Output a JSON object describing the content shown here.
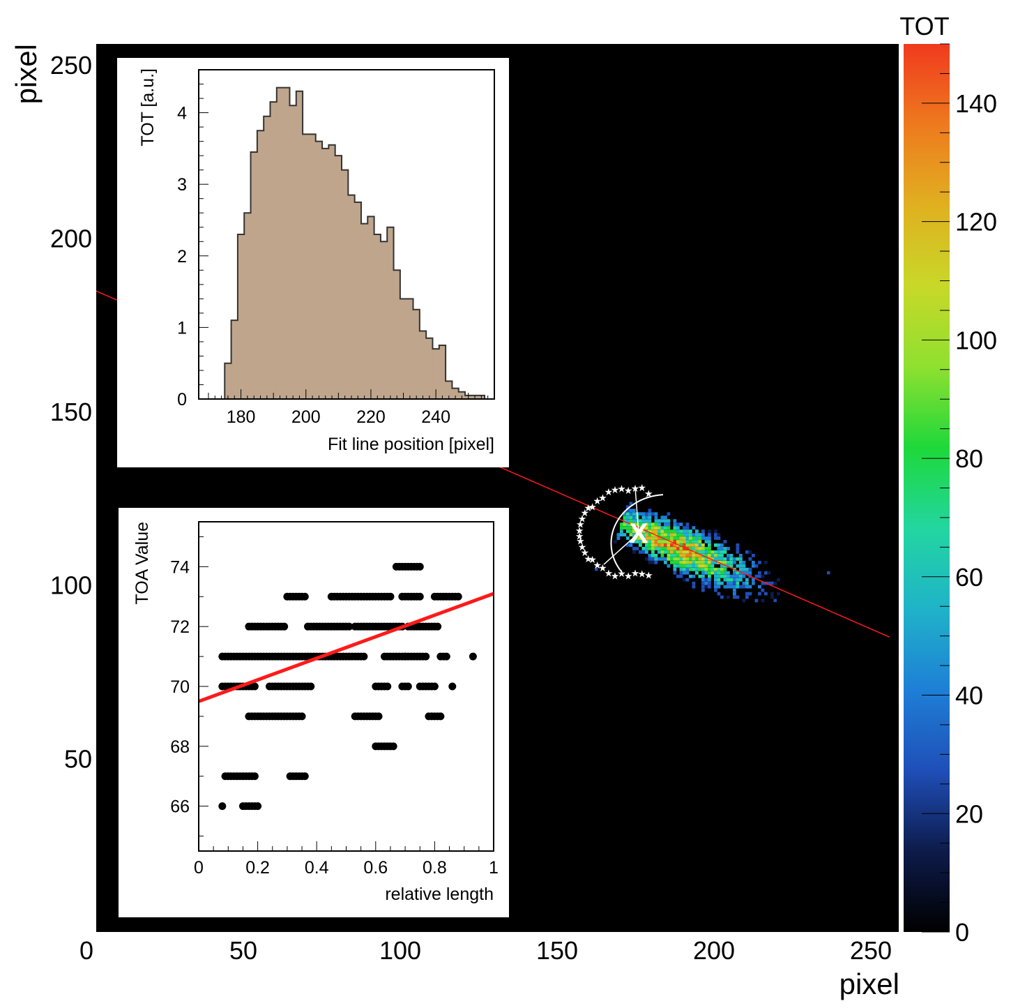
{
  "colorbar": {
    "title": "TOT",
    "range": [
      0,
      150
    ],
    "ticks": [
      0,
      20,
      40,
      60,
      80,
      100,
      120,
      140
    ],
    "colors": [
      "#000000",
      "#0d1b4a",
      "#1f4fb8",
      "#1e7fd6",
      "#1fb3c9",
      "#22d6a0",
      "#1ed83a",
      "#8fe030",
      "#c8d828",
      "#e0b020",
      "#ee7a1e",
      "#f03a1e"
    ]
  },
  "chart_data": [
    {
      "type": "heatmap",
      "title": "",
      "xlabel": "pixel",
      "ylabel": "pixel",
      "xlim": [
        0,
        256
      ],
      "ylim": [
        0,
        256
      ],
      "x_ticks": [
        0,
        50,
        100,
        150,
        200,
        250
      ],
      "y_ticks": [
        50,
        100,
        150,
        200,
        250
      ],
      "background": "#000000",
      "cluster": {
        "center": [
          175.5,
          115.5
        ],
        "axis_direction_deg": -22,
        "extent_x": [
          162,
          240
        ],
        "extent_y": [
          84,
          132
        ],
        "peak_tot": 140
      },
      "fit_line": {
        "color": "#ff1a1a",
        "points": [
          [
            0,
            186
          ],
          [
            256,
            85
          ]
        ]
      },
      "vertex_marker": {
        "symbol": "X",
        "x": 176,
        "y": 115,
        "color": "#ffffff"
      }
    },
    {
      "type": "bar",
      "subtype": "histogram",
      "title": "",
      "xlabel": "Fit line position [pixel]",
      "ylabel": "TOT [a.u.]",
      "xlim": [
        167,
        258
      ],
      "ylim": [
        0,
        4.6
      ],
      "x_ticks": [
        180,
        200,
        220,
        240
      ],
      "y_ticks": [
        0,
        1,
        2,
        3,
        4
      ],
      "bin_width": 2,
      "bin_start": 175,
      "values": [
        0.5,
        1.1,
        2.3,
        2.6,
        3.45,
        3.75,
        3.95,
        4.15,
        4.35,
        4.35,
        4.1,
        4.3,
        3.7,
        3.7,
        3.6,
        3.5,
        3.55,
        3.4,
        3.2,
        2.85,
        2.75,
        2.45,
        2.55,
        2.3,
        2.2,
        2.4,
        1.8,
        1.4,
        1.4,
        1.25,
        0.95,
        0.85,
        0.7,
        0.75,
        0.25,
        0.15,
        0.1,
        0.05,
        0.05,
        0.05
      ],
      "fill": "#bfa58c"
    },
    {
      "type": "scatter",
      "title": "",
      "xlabel": "relative length",
      "ylabel": "TOA Value",
      "xlim": [
        0,
        1
      ],
      "ylim": [
        64.5,
        75.5
      ],
      "x_ticks": [
        0,
        0.2,
        0.4,
        0.6,
        0.8,
        1
      ],
      "x_tick_labels": [
        "0",
        "0.2",
        "0.4",
        "0.6",
        "0.8",
        "1"
      ],
      "y_ticks": [
        66,
        68,
        70,
        72,
        74
      ],
      "point_segments": [
        {
          "y": 74,
          "x_from": 0.67,
          "x_to": 0.75
        },
        {
          "y": 73,
          "x_from": 0.3,
          "x_to": 0.36
        },
        {
          "y": 73,
          "x_from": 0.45,
          "x_to": 0.65
        },
        {
          "y": 73,
          "x_from": 0.69,
          "x_to": 0.75
        },
        {
          "y": 73,
          "x_from": 0.8,
          "x_to": 0.88
        },
        {
          "y": 72,
          "x_from": 0.17,
          "x_to": 0.29
        },
        {
          "y": 72,
          "x_from": 0.37,
          "x_to": 0.51
        },
        {
          "y": 72,
          "x_from": 0.53,
          "x_to": 0.69
        },
        {
          "y": 72,
          "x_from": 0.71,
          "x_to": 0.81
        },
        {
          "y": 71,
          "x_from": 0.08,
          "x_to": 0.56
        },
        {
          "y": 71,
          "x_from": 0.63,
          "x_to": 0.7
        },
        {
          "y": 71,
          "x_from": 0.7,
          "x_to": 0.77
        },
        {
          "y": 71,
          "x_from": 0.82,
          "x_to": 0.84
        },
        {
          "y": 71,
          "x_from": 0.93,
          "x_to": 0.93
        },
        {
          "y": 70,
          "x_from": 0.08,
          "x_to": 0.19
        },
        {
          "y": 70,
          "x_from": 0.24,
          "x_to": 0.38
        },
        {
          "y": 70,
          "x_from": 0.6,
          "x_to": 0.64
        },
        {
          "y": 70,
          "x_from": 0.69,
          "x_to": 0.71
        },
        {
          "y": 70,
          "x_from": 0.75,
          "x_to": 0.8
        },
        {
          "y": 70,
          "x_from": 0.86,
          "x_to": 0.86
        },
        {
          "y": 69,
          "x_from": 0.17,
          "x_to": 0.35
        },
        {
          "y": 69,
          "x_from": 0.53,
          "x_to": 0.61
        },
        {
          "y": 69,
          "x_from": 0.78,
          "x_to": 0.82
        },
        {
          "y": 68,
          "x_from": 0.6,
          "x_to": 0.66
        },
        {
          "y": 67,
          "x_from": 0.09,
          "x_to": 0.19
        },
        {
          "y": 67,
          "x_from": 0.31,
          "x_to": 0.36
        },
        {
          "y": 66,
          "x_from": 0.08,
          "x_to": 0.08
        },
        {
          "y": 66,
          "x_from": 0.15,
          "x_to": 0.2
        }
      ],
      "fit_line": {
        "color": "#ff1a1a",
        "x": [
          0,
          1
        ],
        "y": [
          69.5,
          73.1
        ]
      }
    }
  ]
}
